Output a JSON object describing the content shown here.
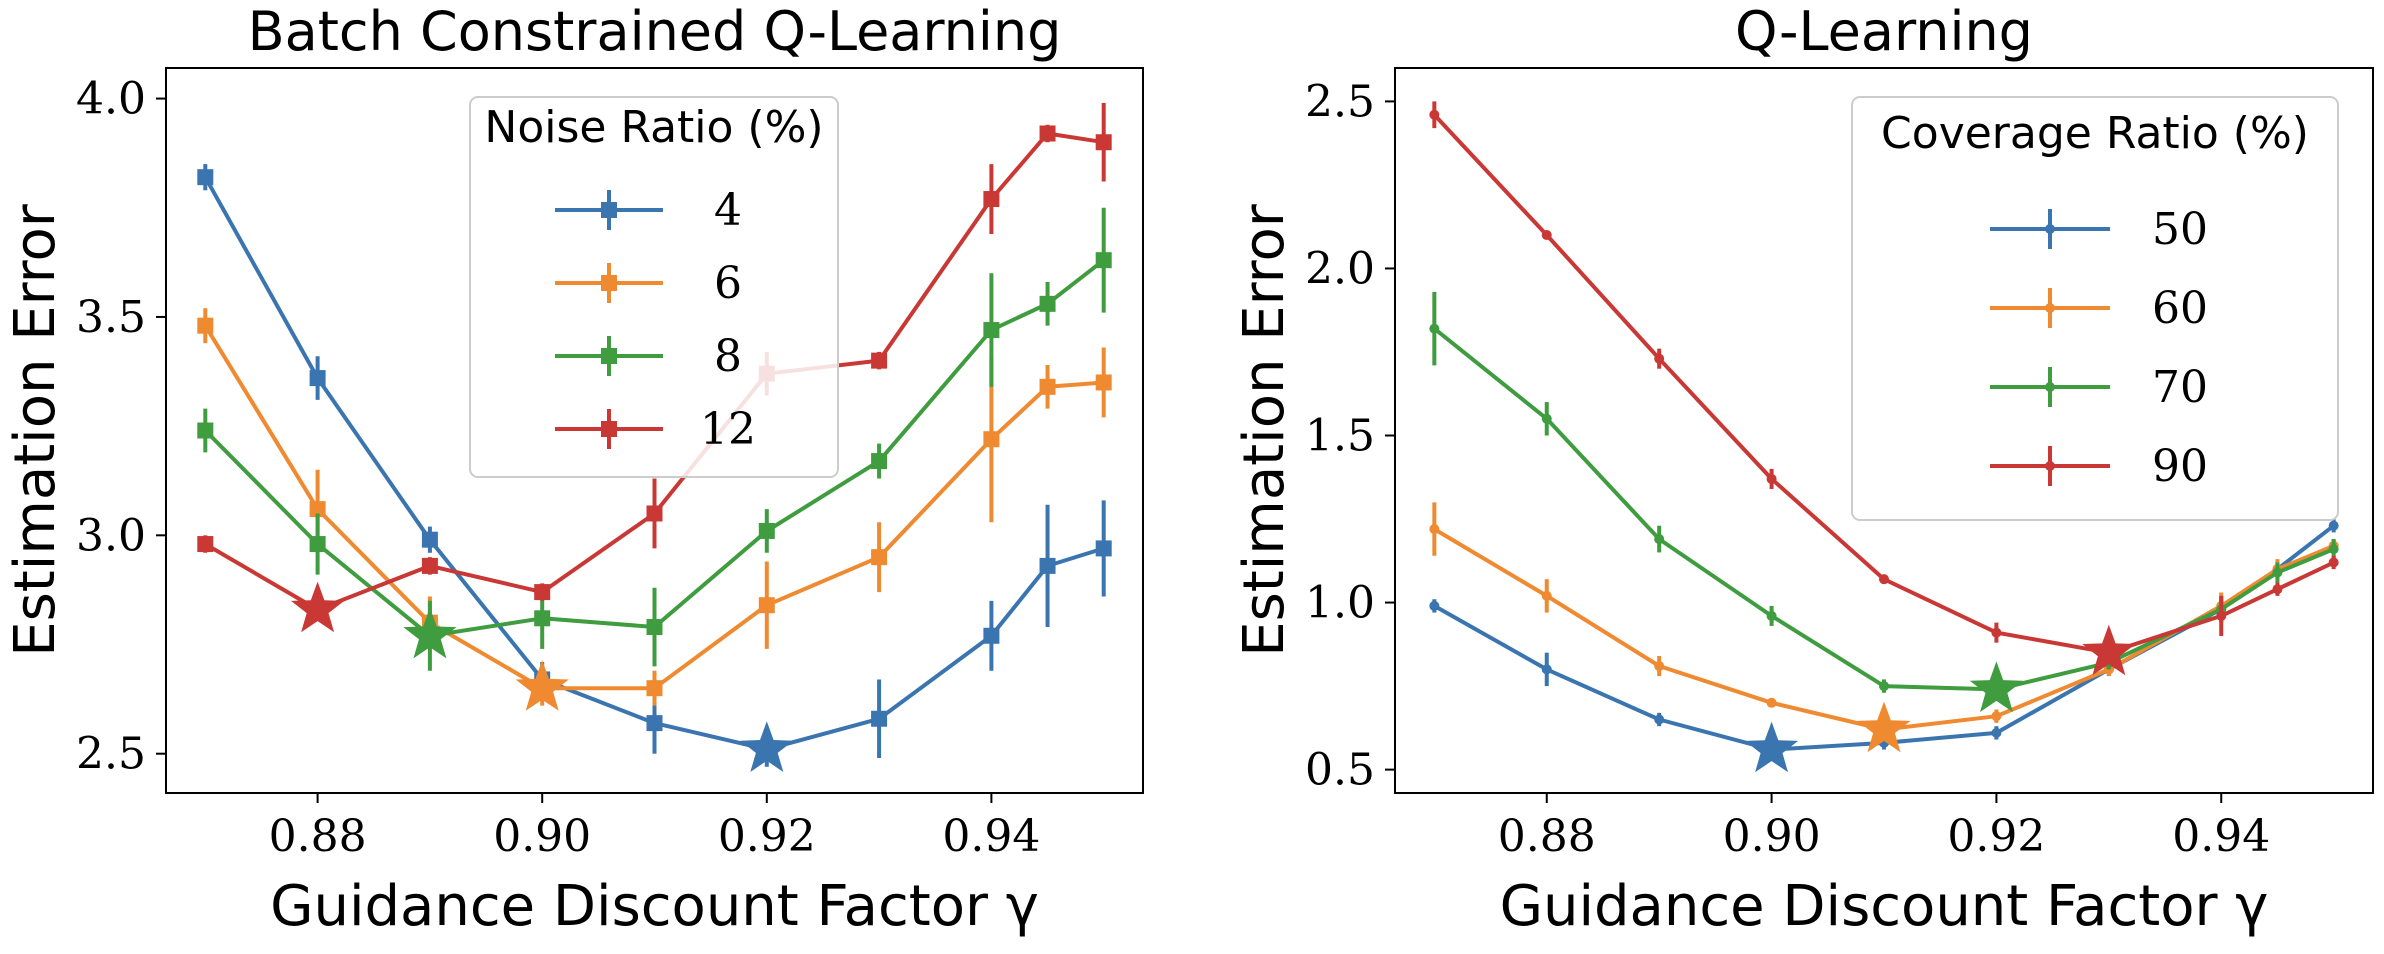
{
  "chart_data": [
    {
      "type": "line",
      "title": "Batch Constrained Q-Learning",
      "xlabel": "Guidance Discount Factor γ",
      "ylabel": "Estimation Error",
      "x": [
        0.87,
        0.88,
        0.89,
        0.9,
        0.91,
        0.92,
        0.93,
        0.94,
        0.945,
        0.95
      ],
      "xlim": [
        0.8665,
        0.9535
      ],
      "ylim": [
        2.41,
        4.07
      ],
      "xticks": [
        0.88,
        0.9,
        0.92,
        0.94
      ],
      "xtick_labels": [
        "0.88",
        "0.90",
        "0.92",
        "0.94"
      ],
      "yticks": [
        2.5,
        3.0,
        3.5,
        4.0
      ],
      "ytick_labels": [
        "2.5",
        "3.0",
        "3.5",
        "4.0"
      ],
      "marker": "square",
      "grid": false,
      "legend": {
        "title": "Noise Ratio (%)",
        "location": "top-center"
      },
      "series": [
        {
          "name": "4",
          "color": "#3a75b0",
          "values": [
            3.82,
            3.36,
            2.99,
            2.67,
            2.57,
            2.51,
            2.58,
            2.77,
            2.93,
            2.97
          ],
          "errors": [
            0.03,
            0.05,
            0.03,
            0.04,
            0.07,
            0.04,
            0.09,
            0.08,
            0.14,
            0.11
          ],
          "best": {
            "x": 0.92,
            "y": 2.51
          }
        },
        {
          "name": "6",
          "color": "#ef8a31",
          "values": [
            3.48,
            3.06,
            2.8,
            2.65,
            2.65,
            2.84,
            2.95,
            3.22,
            3.34,
            3.35
          ],
          "errors": [
            0.04,
            0.09,
            0.06,
            0.04,
            0.04,
            0.1,
            0.08,
            0.19,
            0.05,
            0.08
          ],
          "best": {
            "x": 0.9,
            "y": 2.65
          }
        },
        {
          "name": "8",
          "color": "#3f9c3f",
          "values": [
            3.24,
            2.98,
            2.77,
            2.81,
            2.79,
            3.01,
            3.17,
            3.47,
            3.53,
            3.63
          ],
          "errors": [
            0.05,
            0.07,
            0.08,
            0.07,
            0.09,
            0.05,
            0.04,
            0.13,
            0.05,
            0.12
          ],
          "best": {
            "x": 0.89,
            "y": 2.77
          }
        },
        {
          "name": "12",
          "color": "#c93834",
          "values": [
            2.98,
            2.83,
            2.93,
            2.87,
            3.05,
            3.37,
            3.4,
            3.77,
            3.92,
            3.9
          ],
          "errors": [
            0.02,
            0.02,
            0.02,
            0.02,
            0.08,
            0.05,
            0.02,
            0.08,
            0.02,
            0.09
          ],
          "best": {
            "x": 0.88,
            "y": 2.83
          }
        }
      ]
    },
    {
      "type": "line",
      "title": "Q-Learning",
      "xlabel": "Guidance Discount Factor γ",
      "ylabel": "Estimation Error",
      "x": [
        0.87,
        0.88,
        0.89,
        0.9,
        0.91,
        0.92,
        0.93,
        0.94,
        0.945,
        0.95
      ],
      "xlim": [
        0.8665,
        0.9535
      ],
      "ylim": [
        0.43,
        2.6
      ],
      "xticks": [
        0.88,
        0.9,
        0.92,
        0.94
      ],
      "xtick_labels": [
        "0.88",
        "0.90",
        "0.92",
        "0.94"
      ],
      "yticks": [
        0.5,
        1.0,
        1.5,
        2.0,
        2.5
      ],
      "ytick_labels": [
        "0.5",
        "1.0",
        "1.5",
        "2.0",
        "2.5"
      ],
      "marker": "point",
      "grid": false,
      "legend": {
        "title": "Coverage Ratio (%)",
        "location": "top-right"
      },
      "series": [
        {
          "name": "50",
          "color": "#3a75b0",
          "values": [
            0.99,
            0.8,
            0.65,
            0.56,
            0.58,
            0.61,
            0.8,
            0.98,
            1.1,
            1.23
          ],
          "errors": [
            0.02,
            0.05,
            0.02,
            0.02,
            0.02,
            0.02,
            0.02,
            0.03,
            0.02,
            0.02
          ],
          "best": {
            "x": 0.9,
            "y": 0.56
          }
        },
        {
          "name": "60",
          "color": "#ef8a31",
          "values": [
            1.22,
            1.02,
            0.81,
            0.7,
            0.62,
            0.66,
            0.8,
            0.99,
            1.1,
            1.17
          ],
          "errors": [
            0.08,
            0.05,
            0.03,
            0.01,
            0.02,
            0.02,
            0.02,
            0.04,
            0.03,
            0.02
          ],
          "best": {
            "x": 0.91,
            "y": 0.62
          }
        },
        {
          "name": "70",
          "color": "#3f9c3f",
          "values": [
            1.82,
            1.55,
            1.19,
            0.96,
            0.75,
            0.74,
            0.82,
            0.98,
            1.09,
            1.16
          ],
          "errors": [
            0.11,
            0.05,
            0.04,
            0.03,
            0.02,
            0.02,
            0.02,
            0.04,
            0.03,
            0.03
          ],
          "best": {
            "x": 0.92,
            "y": 0.74
          }
        },
        {
          "name": "90",
          "color": "#c93834",
          "values": [
            2.46,
            2.1,
            1.73,
            1.37,
            1.07,
            0.91,
            0.85,
            0.96,
            1.04,
            1.12
          ],
          "errors": [
            0.04,
            0.01,
            0.03,
            0.03,
            0.01,
            0.03,
            0.01,
            0.06,
            0.02,
            0.02
          ],
          "best": {
            "x": 0.93,
            "y": 0.85
          }
        }
      ]
    }
  ]
}
